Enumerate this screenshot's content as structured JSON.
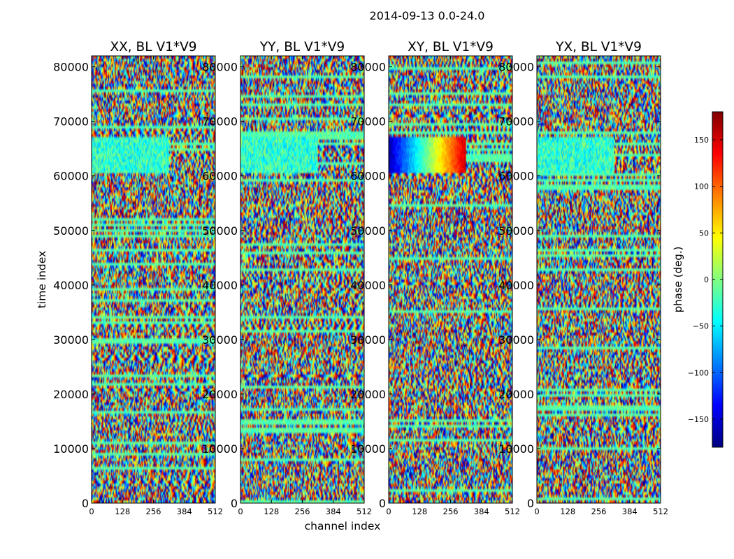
{
  "figure": {
    "suptitle": "2014-09-13 0.0-24.0"
  },
  "chart_data": {
    "type": "heatmap",
    "quantity": "phase",
    "xlabel": "channel index",
    "ylabel": "time index",
    "xlim": [
      0,
      512
    ],
    "ylim": [
      0,
      82000
    ],
    "xticks": [
      0,
      128,
      256,
      384,
      512
    ],
    "yticks": [
      0,
      10000,
      20000,
      30000,
      40000,
      50000,
      60000,
      70000,
      80000
    ],
    "colormap": "jet",
    "colorbar": {
      "label": "phase (deg.)",
      "range": [
        -180,
        180
      ],
      "ticks": [
        -150,
        -100,
        -50,
        0,
        50,
        100,
        150
      ],
      "tick_labels": [
        "−150",
        "−100",
        "−50",
        "0",
        "50",
        "100",
        "150"
      ]
    },
    "panels": [
      {
        "title": "XX, BL V1*V9"
      },
      {
        "title": "YY, BL V1*V9"
      },
      {
        "title": "XY, BL V1*V9"
      },
      {
        "title": "YX, BL V1*V9"
      }
    ]
  }
}
